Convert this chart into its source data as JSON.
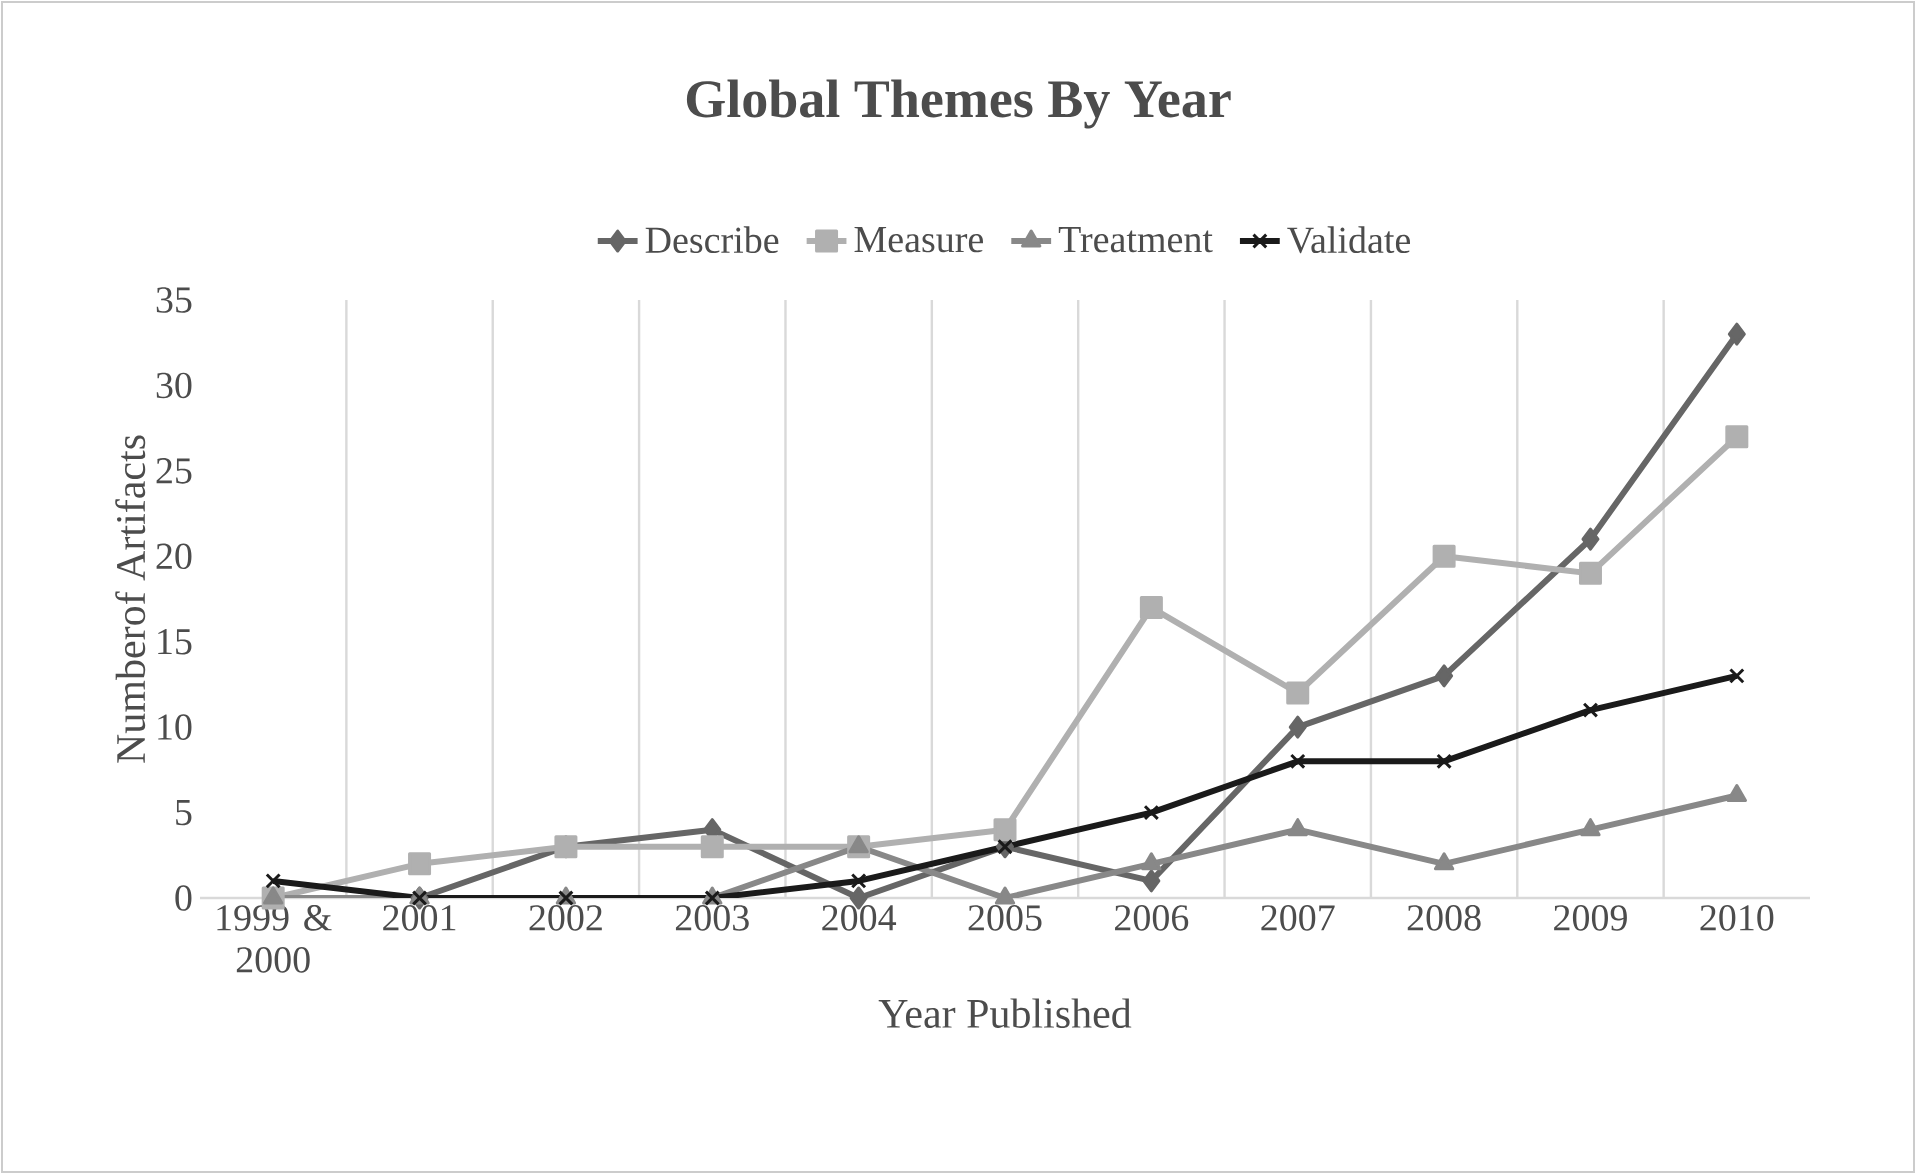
{
  "chart_data": {
    "type": "line",
    "title": "Global Themes By Year",
    "xlabel": "Year Published",
    "ylabel": "Numberof Artifacts",
    "categories": [
      "1999 & 2000",
      "2001",
      "2002",
      "2003",
      "2004",
      "2005",
      "2006",
      "2007",
      "2008",
      "2009",
      "2010"
    ],
    "series": [
      {
        "name": "Describe",
        "color": "#666666",
        "marker": "diamond",
        "values": [
          0,
          0,
          3,
          4,
          0,
          3,
          1,
          10,
          13,
          21,
          33
        ]
      },
      {
        "name": "Measure",
        "color": "#b0b0b0",
        "marker": "square",
        "values": [
          0,
          2,
          3,
          3,
          3,
          4,
          17,
          12,
          20,
          19,
          27
        ]
      },
      {
        "name": "Treatment",
        "color": "#888888",
        "marker": "triangle",
        "values": [
          0,
          0,
          0,
          0,
          3,
          0,
          2,
          4,
          2,
          4,
          6
        ]
      },
      {
        "name": "Validate",
        "color": "#1a1a1a",
        "marker": "cross",
        "values": [
          1,
          0,
          0,
          0,
          1,
          3,
          5,
          8,
          8,
          11,
          13
        ]
      }
    ],
    "ylim": [
      0,
      35
    ],
    "yticks": [
      0,
      5,
      10,
      15,
      20,
      25,
      30,
      35
    ],
    "grid": "x",
    "legend": "top",
    "line_style": "solid"
  }
}
